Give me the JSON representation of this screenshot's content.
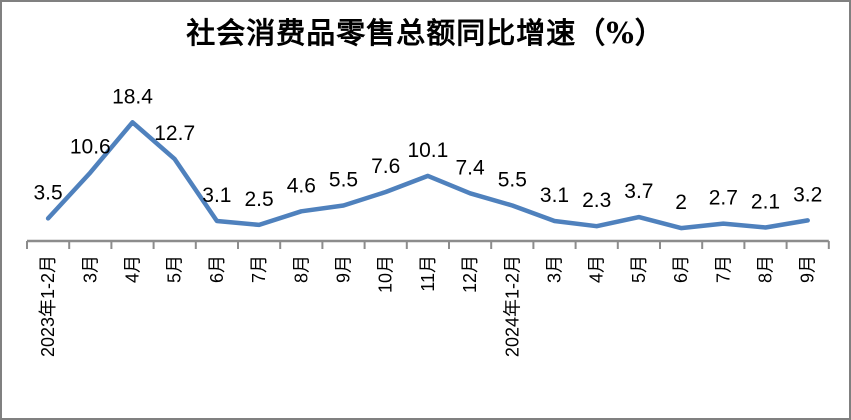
{
  "frame": {
    "background_color": "#ffffff",
    "border_color": "#808080"
  },
  "chart_data": {
    "type": "line",
    "title": "社会消费品零售总额同比增速（%）",
    "categories": [
      "2023年1-2月",
      "3月",
      "4月",
      "5月",
      "6月",
      "7月",
      "8月",
      "9月",
      "10月",
      "11月",
      "12月",
      "2024年1-2月",
      "3月",
      "4月",
      "5月",
      "6月",
      "7月",
      "8月",
      "9月"
    ],
    "values": [
      3.5,
      10.6,
      18.4,
      12.7,
      3.1,
      2.5,
      4.6,
      5.5,
      7.6,
      10.1,
      7.4,
      5.5,
      3.1,
      2.3,
      3.7,
      2,
      2.7,
      2.1,
      3.2
    ],
    "data_labels": [
      "3.5",
      "10.6",
      "18.4",
      "12.7",
      "3.1",
      "2.5",
      "4.6",
      "5.5",
      "7.6",
      "10.1",
      "7.4",
      "5.5",
      "3.1",
      "2.3",
      "3.7",
      "2",
      "2.7",
      "2.1",
      "3.2"
    ],
    "xlabel": "",
    "ylabel": "",
    "ylim": [
      0,
      20
    ],
    "grid": false,
    "legend_position": "none",
    "line_color": "#4F81BD",
    "axis_color": "#8C8C8C",
    "label_color": "#000000",
    "data_labels_position": "above"
  }
}
